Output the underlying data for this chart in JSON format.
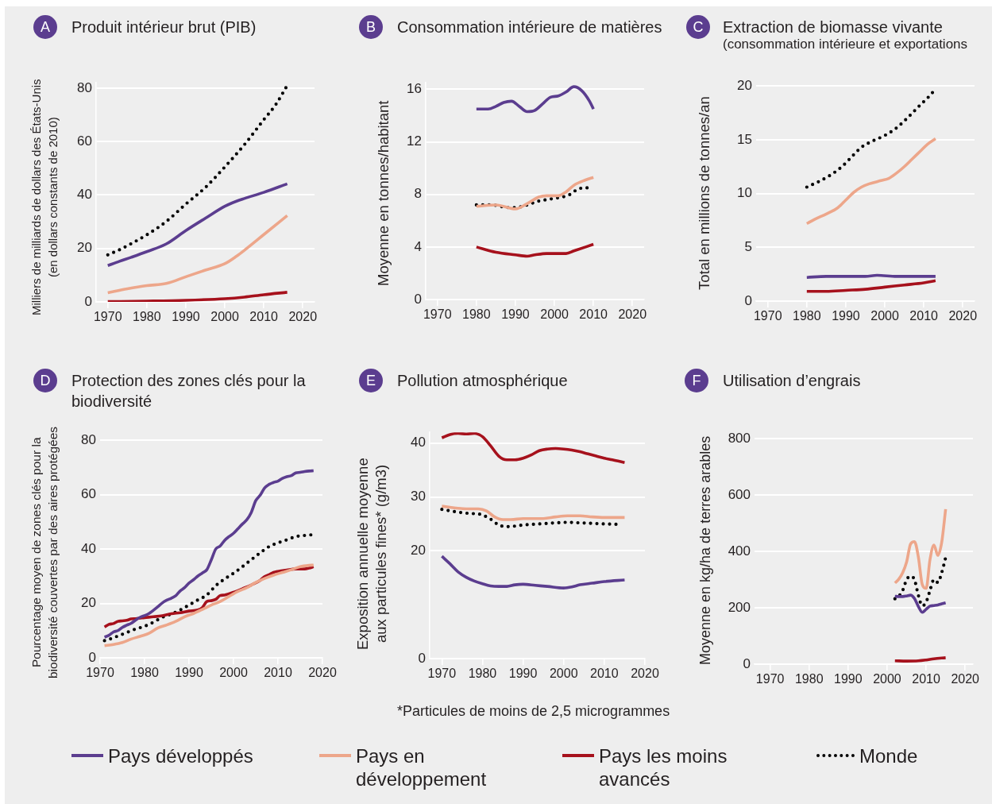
{
  "chart_data": [
    {
      "type": "line",
      "title": "Produit intérieur brut (PIB)",
      "ylabel": "Milliers de milliards de dollars des États-Unis (en dollars constants de 2010)",
      "annotations": [
        "A"
      ],
      "xlim": [
        1967,
        2023
      ],
      "xticks": [
        1970,
        1980,
        1990,
        2000,
        2010,
        2020
      ],
      "ylim": [
        0,
        82
      ],
      "yticks": [
        0,
        20,
        40,
        60,
        80
      ],
      "grid": "y",
      "legend": "bottom",
      "series": [
        {
          "name": "Pays développés",
          "color": "#5b3d8f",
          "x": [
            1970,
            1973,
            1976,
            1980,
            1985,
            1990,
            1995,
            2000,
            2003,
            2005,
            2010,
            2016
          ],
          "values": [
            13.6,
            15.2,
            16.7,
            18.8,
            21.7,
            26.7,
            31.3,
            35.8,
            37.7,
            38.7,
            41.0,
            44.2
          ]
        },
        {
          "name": "Pays en développement",
          "color": "#eda68a",
          "x": [
            1970,
            1975,
            1980,
            1985,
            1990,
            1995,
            2000,
            2003,
            2005,
            2010,
            2016
          ],
          "values": [
            3.4,
            4.9,
            6.1,
            6.9,
            9.4,
            11.9,
            14.3,
            17.1,
            19.3,
            25.2,
            32.3
          ]
        },
        {
          "name": "Pays les moins avancés",
          "color": "#a6111c",
          "x": [
            1970,
            1980,
            1990,
            2000,
            2005,
            2010,
            2016
          ],
          "values": [
            0.1,
            0.3,
            0.6,
            1.2,
            1.8,
            2.7,
            3.6
          ]
        },
        {
          "name": "Monde",
          "color": "#000000",
          "line_style": "dotted",
          "x": [
            1970,
            1973,
            1976,
            1980,
            1985,
            1990,
            1995,
            2000,
            2005,
            2010,
            2013,
            2016
          ],
          "values": [
            17.6,
            19.5,
            21.8,
            25.1,
            30.1,
            36.6,
            42.8,
            50.5,
            58.8,
            68.2,
            73.7,
            81.0
          ]
        }
      ]
    },
    {
      "type": "line",
      "title": "Consommation intérieure de matières",
      "ylabel": "Moyenne en tonnes/habitant",
      "annotations": [
        "B"
      ],
      "xlim": [
        1967,
        2023
      ],
      "xticks": [
        1970,
        1980,
        1990,
        2000,
        2010,
        2020
      ],
      "ylim": [
        0,
        16.5
      ],
      "yticks": [
        0,
        4,
        8,
        12,
        16
      ],
      "grid": "y",
      "series": [
        {
          "color": "#5b3d8f",
          "x": [
            1980,
            1983,
            1985,
            1987,
            1989,
            1991,
            1993,
            1995,
            1997,
            1999,
            2001,
            2003,
            2005,
            2007,
            2009,
            2010
          ],
          "values": [
            14.5,
            14.5,
            14.7,
            15.0,
            15.1,
            14.7,
            14.3,
            14.4,
            14.9,
            15.4,
            15.5,
            15.8,
            16.2,
            15.9,
            15.1,
            14.5
          ]
        },
        {
          "color": "#eda68a",
          "x": [
            1980,
            1985,
            1990,
            1993,
            1996,
            1998,
            2001,
            2003,
            2005,
            2008,
            2010
          ],
          "values": [
            7.1,
            7.2,
            6.9,
            7.3,
            7.8,
            7.9,
            7.9,
            8.2,
            8.7,
            9.1,
            9.3
          ]
        },
        {
          "color": "#a6111c",
          "x": [
            1980,
            1985,
            1990,
            1993,
            1995,
            1998,
            2000,
            2003,
            2005,
            2008,
            2010
          ],
          "values": [
            4.0,
            3.6,
            3.4,
            3.3,
            3.4,
            3.5,
            3.5,
            3.5,
            3.7,
            4.0,
            4.2
          ]
        },
        {
          "color": "#000000",
          "line_style": "dotted",
          "x": [
            1980,
            1982,
            1984,
            1986,
            1988,
            1990,
            1992,
            1994,
            1996,
            1998,
            2000,
            2002,
            2004,
            2006,
            2008,
            2009
          ],
          "values": [
            7.2,
            7.2,
            7.2,
            7.1,
            7.0,
            7.0,
            7.1,
            7.3,
            7.5,
            7.6,
            7.7,
            7.8,
            8.0,
            8.4,
            8.5,
            8.5
          ]
        }
      ]
    },
    {
      "type": "line",
      "title": "Extraction de biomasse vivante",
      "subtitle": "(consommation intérieure et exportations",
      "ylabel": "Total en millions de tonnes/an",
      "annotations": [
        "C"
      ],
      "xlim": [
        1967,
        2023
      ],
      "xticks": [
        1970,
        1980,
        1990,
        2000,
        2010,
        2020
      ],
      "ylim": [
        0,
        20
      ],
      "yticks": [
        0,
        5,
        10,
        15,
        20
      ],
      "grid": "y",
      "series": [
        {
          "color": "#5b3d8f",
          "x": [
            1980,
            1985,
            1990,
            1995,
            1998,
            2003,
            2008,
            2013
          ],
          "values": [
            2.2,
            2.3,
            2.3,
            2.3,
            2.4,
            2.3,
            2.3,
            2.3
          ]
        },
        {
          "color": "#eda68a",
          "x": [
            1980,
            1982,
            1985,
            1988,
            1990,
            1992,
            1994,
            1996,
            1999,
            2001,
            2003,
            2005,
            2007,
            2009,
            2011,
            2013
          ],
          "values": [
            7.2,
            7.6,
            8.1,
            8.7,
            9.4,
            10.1,
            10.6,
            10.9,
            11.2,
            11.4,
            11.9,
            12.5,
            13.2,
            13.9,
            14.6,
            15.1
          ]
        },
        {
          "color": "#a6111c",
          "x": [
            1980,
            1985,
            1990,
            1995,
            2000,
            2005,
            2010,
            2013
          ],
          "values": [
            0.9,
            0.9,
            1.0,
            1.1,
            1.3,
            1.5,
            1.7,
            1.9
          ]
        },
        {
          "color": "#000000",
          "line_style": "dotted",
          "x": [
            1980,
            1983,
            1986,
            1989,
            1992,
            1994,
            1997,
            2000,
            2003,
            2006,
            2009,
            2011,
            2013
          ],
          "values": [
            10.6,
            11.1,
            11.7,
            12.5,
            13.6,
            14.3,
            14.9,
            15.4,
            16.1,
            17.1,
            18.2,
            18.9,
            19.7
          ]
        }
      ]
    },
    {
      "type": "line",
      "title": "Protection des zones clés pour la biodiversité",
      "ylabel": "Pourcentage moyen de zones clés pour la biodiversité couvertes par des aires protégées",
      "annotations": [
        "D"
      ],
      "xlim": [
        1970,
        2020
      ],
      "xticks": [
        1970,
        1980,
        1990,
        2000,
        2010,
        2020
      ],
      "ylim": [
        0,
        80
      ],
      "yticks": [
        0,
        20,
        40,
        60,
        80
      ],
      "grid": "y",
      "series": [
        {
          "color": "#5b3d8f",
          "x": [
            1971,
            1972,
            1973,
            1974,
            1975,
            1976,
            1977,
            1978,
            1979,
            1980,
            1981,
            1982,
            1983,
            1984,
            1985,
            1986,
            1987,
            1988,
            1989,
            1990,
            1991,
            1992,
            1993,
            1994,
            1995,
            1996,
            1997,
            1998,
            1999,
            2000,
            2001,
            2002,
            2003,
            2004,
            2005,
            2006,
            2007,
            2008,
            2009,
            2010,
            2011,
            2012,
            2013,
            2014,
            2015,
            2016,
            2017,
            2018
          ],
          "values": [
            7.6,
            8.3,
            9.5,
            10.0,
            11.2,
            12.0,
            12.7,
            13.9,
            14.9,
            15.5,
            16.3,
            17.5,
            18.8,
            20.2,
            21.2,
            21.9,
            22.8,
            24.6,
            25.8,
            27.5,
            28.7,
            30.1,
            31.2,
            32.4,
            36.0,
            40.0,
            41.1,
            43.2,
            44.6,
            45.8,
            47.5,
            49.2,
            50.8,
            53.5,
            57.8,
            59.8,
            62.5,
            63.8,
            64.5,
            65.0,
            66.0,
            66.6,
            67.0,
            68.0,
            68.2,
            68.5,
            68.7,
            68.8
          ]
        },
        {
          "color": "#eda68a",
          "x": [
            1971,
            1973,
            1975,
            1977,
            1979,
            1981,
            1983,
            1985,
            1987,
            1989,
            1991,
            1993,
            1995,
            1997,
            1999,
            2001,
            2003,
            2005,
            2007,
            2009,
            2011,
            2013,
            2015,
            2017,
            2018
          ],
          "values": [
            4.5,
            4.9,
            5.6,
            6.9,
            7.9,
            9.0,
            11.0,
            12.1,
            13.4,
            15.1,
            16.3,
            17.8,
            19.4,
            20.7,
            22.6,
            24.4,
            25.8,
            27.7,
            29.2,
            30.4,
            31.4,
            32.4,
            33.5,
            34.0,
            34.1
          ]
        },
        {
          "color": "#a6111c",
          "x": [
            1971,
            1972,
            1973,
            1974,
            1975,
            1976,
            1977,
            1978,
            1979,
            1980,
            1982,
            1984,
            1986,
            1988,
            1990,
            1992,
            1993,
            1994,
            1995,
            1996,
            1997,
            1998,
            2000,
            2002,
            2004,
            2006,
            2007,
            2008,
            2009,
            2010,
            2012,
            2014,
            2016,
            2017,
            2018
          ],
          "values": [
            11.3,
            12.3,
            12.6,
            13.4,
            13.6,
            13.8,
            14.3,
            14.4,
            14.6,
            14.8,
            15.1,
            15.5,
            16.2,
            16.6,
            17.2,
            17.6,
            18.5,
            20.7,
            21.0,
            21.5,
            22.9,
            23.1,
            24.1,
            25.4,
            26.8,
            28.5,
            29.9,
            30.6,
            31.4,
            31.8,
            32.3,
            32.7,
            32.7,
            33.0,
            33.5
          ]
        },
        {
          "color": "#000000",
          "line_style": "dotted",
          "x": [
            1971,
            1972,
            1974,
            1976,
            1978,
            1980,
            1982,
            1984,
            1986,
            1988,
            1990,
            1992,
            1994,
            1996,
            1998,
            2000,
            2002,
            2004,
            2006,
            2008,
            2010,
            2012,
            2014,
            2016,
            2018
          ],
          "values": [
            6.3,
            6.8,
            8.0,
            9.3,
            10.6,
            11.6,
            13.1,
            14.9,
            16.1,
            17.6,
            19.4,
            21.3,
            23.1,
            26.5,
            29.0,
            31.1,
            33.5,
            36.1,
            38.6,
            40.9,
            42.3,
            43.4,
            44.6,
            45.0,
            45.3
          ]
        }
      ]
    },
    {
      "type": "line",
      "title": "Pollution atmosphérique",
      "ylabel": "Exposition annuelle moyenne aux particules fines* (g/m3)",
      "annotations": [
        "E",
        "*Particules de moins de 2,5 microgrammes"
      ],
      "xlim": [
        1967,
        2020
      ],
      "xticks": [
        1970,
        1980,
        1990,
        2000,
        2010,
        2020
      ],
      "ylim": [
        0,
        42
      ],
      "yticks": [
        0,
        20,
        30,
        40
      ],
      "grid": "y",
      "series": [
        {
          "color": "#5b3d8f",
          "x": [
            1970,
            1972,
            1974,
            1976,
            1978,
            1980,
            1982,
            1984,
            1986,
            1988,
            1990,
            1993,
            1996,
            2000,
            2002,
            2004,
            2007,
            2010,
            2015
          ],
          "values": [
            19.0,
            17.6,
            16.1,
            15.1,
            14.4,
            13.9,
            13.5,
            13.4,
            13.4,
            13.7,
            13.8,
            13.6,
            13.4,
            13.1,
            13.3,
            13.7,
            14.0,
            14.3,
            14.6
          ]
        },
        {
          "color": "#eda68a",
          "x": [
            1970,
            1972,
            1974,
            1976,
            1979,
            1981,
            1983,
            1985,
            1987,
            1990,
            1995,
            1998,
            2001,
            2004,
            2007,
            2010,
            2015
          ],
          "values": [
            28.3,
            28.1,
            27.9,
            27.8,
            27.8,
            27.4,
            26.3,
            25.8,
            25.8,
            26.0,
            26.0,
            26.3,
            26.5,
            26.5,
            26.3,
            26.2,
            26.2
          ]
        },
        {
          "color": "#a6111c",
          "x": [
            1970,
            1972,
            1974,
            1976,
            1978,
            1980,
            1982,
            1984,
            1986,
            1988,
            1990,
            1992,
            1994,
            1996,
            1998,
            2000,
            2002,
            2004,
            2006,
            2008,
            2010,
            2012,
            2015
          ],
          "values": [
            41.0,
            41.6,
            41.8,
            41.7,
            41.8,
            41.2,
            39.5,
            37.6,
            36.9,
            36.9,
            37.2,
            37.8,
            38.6,
            38.9,
            39.0,
            38.9,
            38.7,
            38.4,
            38.0,
            37.6,
            37.2,
            36.9,
            36.4
          ]
        },
        {
          "color": "#000000",
          "line_style": "dotted",
          "x": [
            1970,
            1973,
            1976,
            1978,
            1980,
            1981,
            1982,
            1984,
            1986,
            1988,
            1990,
            1994,
            1998,
            2001,
            2004,
            2007,
            2010,
            2014
          ],
          "values": [
            27.7,
            27.3,
            27.0,
            26.9,
            26.7,
            26.3,
            25.9,
            24.8,
            24.5,
            24.6,
            24.8,
            25.0,
            25.2,
            25.3,
            25.2,
            25.1,
            25.0,
            24.9
          ]
        }
      ]
    },
    {
      "type": "line",
      "title": "Utilisation d’engrais",
      "ylabel": "Moyenne en kg/ha de terres arables",
      "annotations": [
        "F"
      ],
      "xlim": [
        1966,
        2022
      ],
      "xticks": [
        1970,
        1980,
        1990,
        2000,
        2010,
        2020
      ],
      "ylim": [
        0,
        800
      ],
      "yticks": [
        0,
        200,
        400,
        600,
        800
      ],
      "grid": "y",
      "series": [
        {
          "color": "#5b3d8f",
          "x": [
            2002,
            2003,
            2004,
            2005,
            2006,
            2007,
            2008,
            2009,
            2010,
            2011,
            2012,
            2013,
            2014,
            2015
          ],
          "values": [
            241,
            240,
            240,
            242,
            245,
            233,
            205,
            184,
            195,
            206,
            208,
            210,
            214,
            218
          ]
        },
        {
          "color": "#eda68a",
          "x": [
            2002,
            2003,
            2004,
            2005,
            2006,
            2007,
            2008,
            2009,
            2010,
            2011,
            2012,
            2013,
            2014,
            2015
          ],
          "values": [
            288,
            302,
            325,
            363,
            426,
            435,
            381,
            283,
            269,
            372,
            423,
            386,
            433,
            550
          ]
        },
        {
          "color": "#a6111c",
          "x": [
            2002,
            2005,
            2008,
            2010,
            2012,
            2015
          ],
          "values": [
            12,
            11,
            12,
            15,
            19,
            23
          ]
        },
        {
          "color": "#000000",
          "line_style": "dotted",
          "x": [
            2002,
            2003,
            2004,
            2005,
            2006,
            2007,
            2008,
            2009,
            2010,
            2011,
            2012,
            2013,
            2014,
            2015
          ],
          "values": [
            232,
            241,
            262,
            300,
            312,
            300,
            245,
            207,
            220,
            262,
            300,
            290,
            325,
            378
          ]
        }
      ]
    }
  ]
}
